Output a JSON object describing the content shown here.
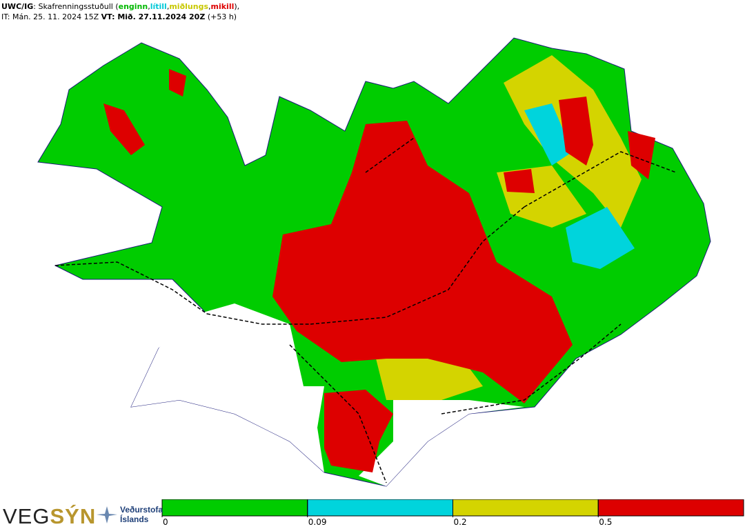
{
  "header": {
    "product": "UWC/IG",
    "title": ": Skafrenningsstuðull (",
    "classes": [
      {
        "name": "enginn",
        "color": "#00b800"
      },
      {
        "name": "lítill",
        "color": "#00c8d8"
      },
      {
        "name": "miðlungs",
        "color": "#c8c800"
      },
      {
        "name": "mikill",
        "color": "#dd0000"
      }
    ],
    "separator": ",",
    "closing": "),",
    "issue_time": "IT: Mán. 25. 11. 2024 15Z",
    "valid_time": "VT: Mið. 27.11.2024 20Z",
    "lead": "(+53 h)"
  },
  "legend": {
    "ticks": [
      0,
      0.09,
      0.2,
      0.5
    ],
    "colors": [
      "#00cc00",
      "#00d4dc",
      "#d4d400",
      "#dd0000"
    ]
  },
  "logos": {
    "vegsyn_a": "VEG",
    "vegsyn_b": "SÝN",
    "vedur_1": "Veðurstofa",
    "vedur_2": "Íslands"
  }
}
